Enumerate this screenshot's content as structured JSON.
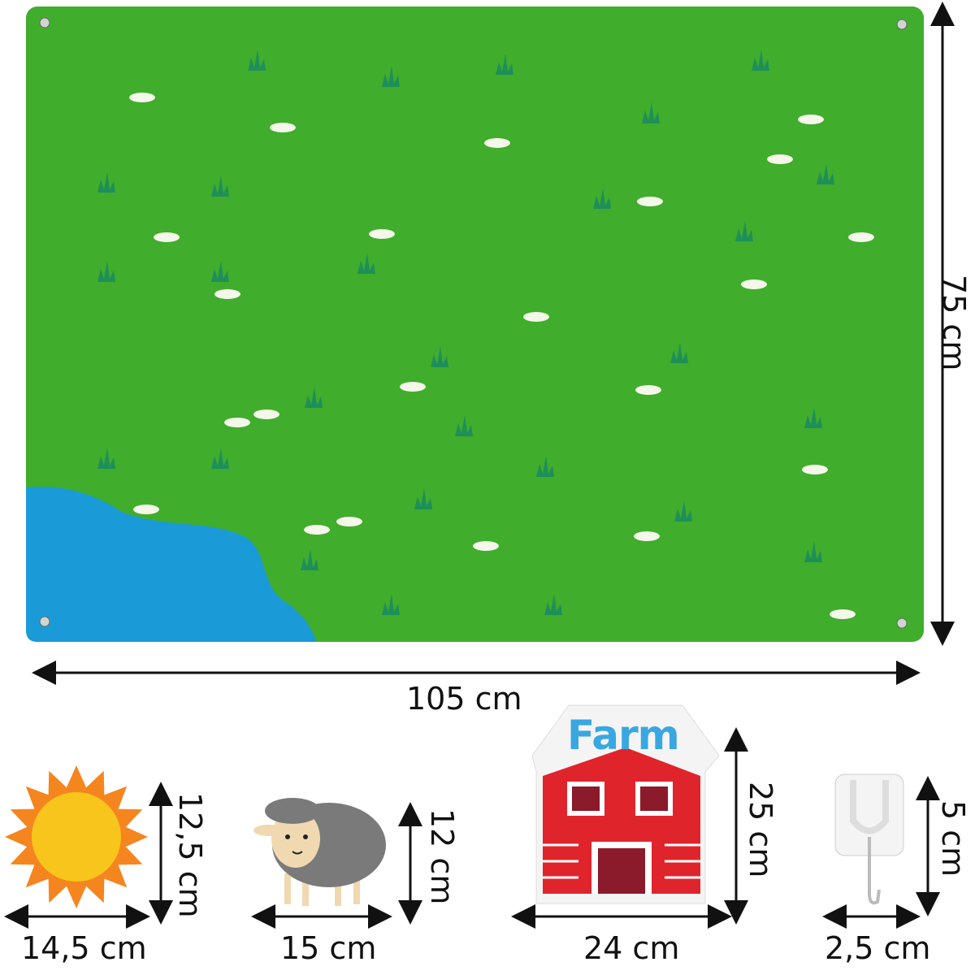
{
  "board": {
    "height_label": "75 cm",
    "width_label": "105 cm",
    "colors": {
      "felt": "#40ad2c",
      "pond": "#1a9bd7",
      "grass": "#1f8f5a",
      "flower": "#f4f7ea"
    }
  },
  "pieces": [
    {
      "name": "sun",
      "height_label": "12,5 cm",
      "width_label": "14,5 cm"
    },
    {
      "name": "sheep",
      "height_label": "12 cm",
      "width_label": "15 cm"
    },
    {
      "name": "barn",
      "sign_text": "Farm",
      "height_label": "25 cm",
      "width_label": "24 cm"
    },
    {
      "name": "hook",
      "height_label": "5 cm",
      "width_label": "2,5 cm"
    }
  ]
}
